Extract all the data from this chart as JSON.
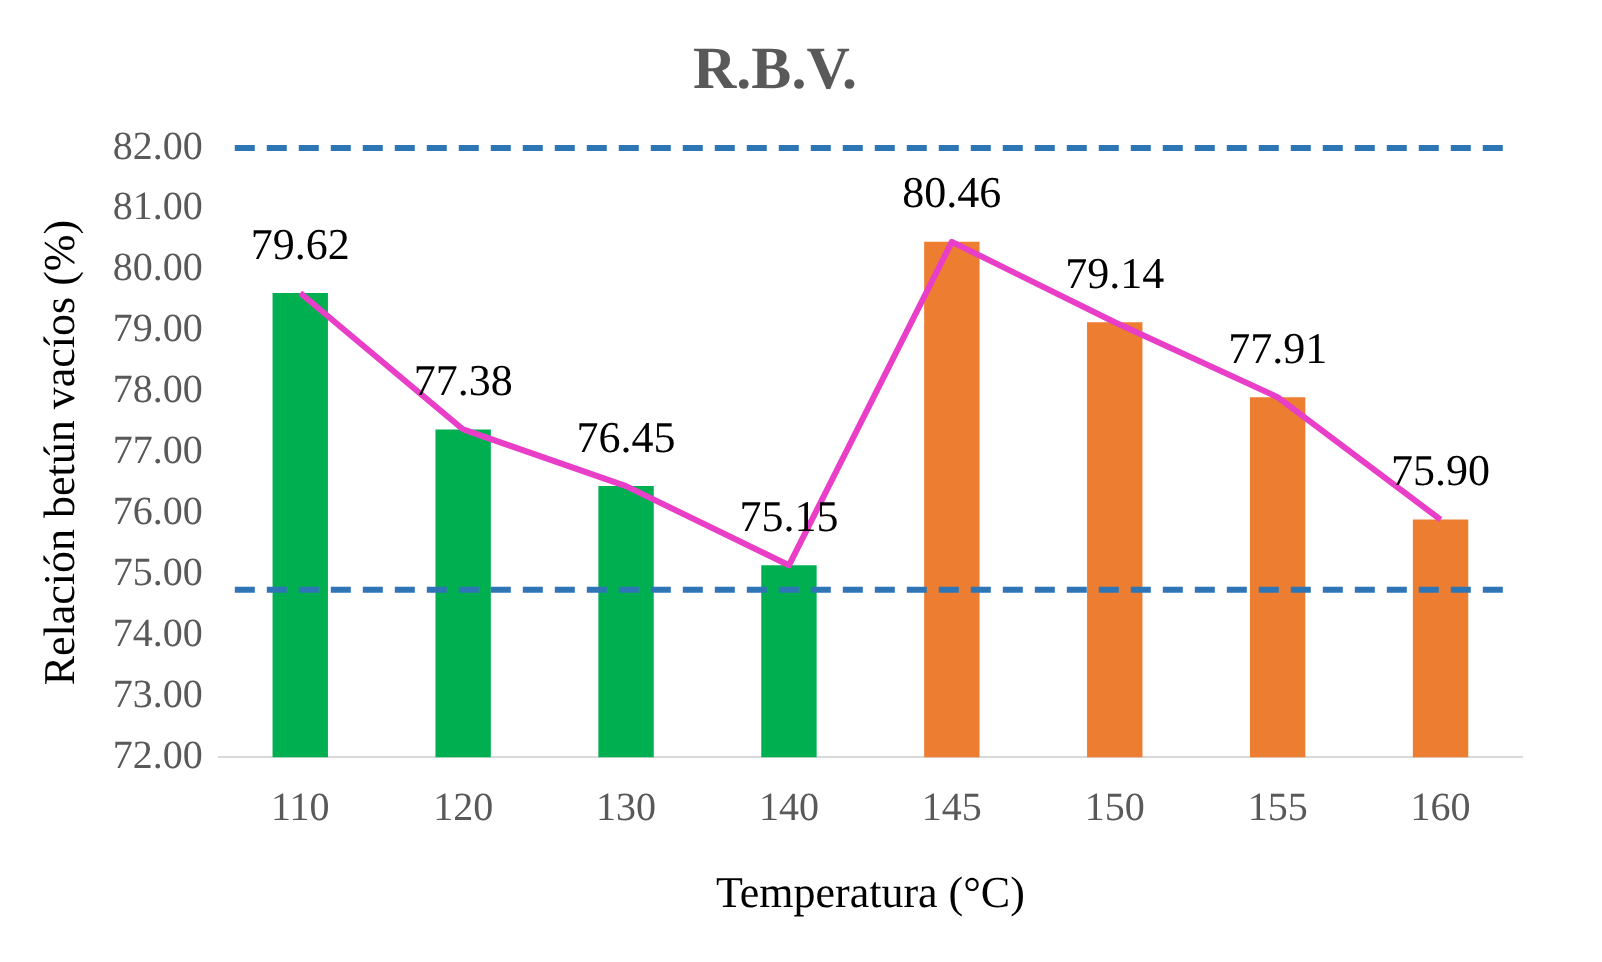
{
  "chart_data": {
    "type": "bar",
    "title": "R.B.V.",
    "xlabel": "Temperatura (°C)",
    "ylabel": "Relación betún vacíos (%)",
    "categories": [
      "110",
      "120",
      "130",
      "140",
      "145",
      "150",
      "155",
      "160"
    ],
    "series": [
      {
        "colors": [
          "#00b050",
          "#00b050",
          "#00b050",
          "#00b050",
          "#ed7d31",
          "#ed7d31",
          "#ed7d31",
          "#ed7d31"
        ],
        "values": [
          79.62,
          77.38,
          76.45,
          75.15,
          80.46,
          79.14,
          77.91,
          75.9
        ]
      },
      {
        "type": "line",
        "color": "#e83ec8",
        "values": [
          79.62,
          77.38,
          76.45,
          75.15,
          80.46,
          79.14,
          77.91,
          75.9
        ],
        "value_labels": [
          "79.62",
          "77.38",
          "76.45",
          "75.15",
          "80.46",
          "79.14",
          "77.91",
          "75.90"
        ]
      }
    ],
    "ylim": [
      72,
      82
    ],
    "yticks": [
      {
        "value": 72,
        "label": "72.00"
      },
      {
        "value": 73,
        "label": "73.00"
      },
      {
        "value": 74,
        "label": "74.00"
      },
      {
        "value": 75,
        "label": "75.00"
      },
      {
        "value": 76,
        "label": "76.00"
      },
      {
        "value": 77,
        "label": "77.00"
      },
      {
        "value": 78,
        "label": "78.00"
      },
      {
        "value": 79,
        "label": "79.00"
      },
      {
        "value": 80,
        "label": "80.00"
      },
      {
        "value": 81,
        "label": "81.00"
      },
      {
        "value": 82,
        "label": "82.00"
      }
    ],
    "ref_lines": [
      {
        "axis": "y",
        "value": 82,
        "color": "#2e75b6",
        "line_style": "dashed"
      },
      {
        "axis": "y",
        "value": 74.75,
        "color": "#2e75b6",
        "line_style": "dashed"
      }
    ],
    "grid": false,
    "legend": false
  }
}
